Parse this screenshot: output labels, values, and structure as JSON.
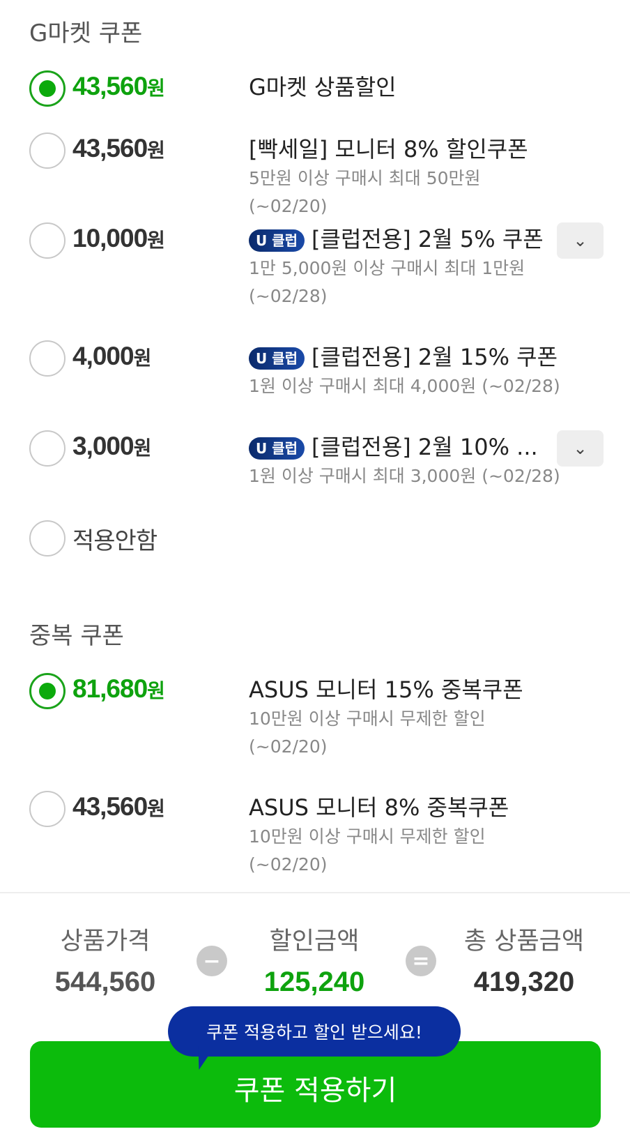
{
  "gmarket_section": {
    "title": "G마켓 쿠폰",
    "coupons": [
      {
        "amount": "43,560",
        "unit": "원",
        "title": "G마켓 상품할인",
        "sub": "",
        "selected": true
      },
      {
        "amount": "43,560",
        "unit": "원",
        "title": "[빡세일] 모니터 8% 할인쿠폰",
        "sub": "5만원 이상 구매시 최대 50만원 (~02/20)",
        "selected": false
      },
      {
        "amount": "10,000",
        "unit": "원",
        "badge": "U 클럽",
        "title": "[클럽전용] 2월 5% 쿠폰",
        "sub": "1만 5,000원 이상 구매시 최대 1만원 (~02/28)",
        "selected": false,
        "expandable": true
      },
      {
        "amount": "4,000",
        "unit": "원",
        "badge": "U 클럽",
        "title": "[클럽전용] 2월 15% 쿠폰",
        "sub": "1원 이상 구매시 최대 4,000원 (~02/28)",
        "selected": false
      },
      {
        "amount": "3,000",
        "unit": "원",
        "badge": "U 클럽",
        "title": "[클럽전용] 2월 10% ...",
        "sub": "1원 이상 구매시 최대 3,000원 (~02/28)",
        "selected": false,
        "expandable": true
      }
    ],
    "none_label": "적용안함"
  },
  "duplicate_section": {
    "title": "중복 쿠폰",
    "coupons": [
      {
        "amount": "81,680",
        "unit": "원",
        "title": "ASUS 모니터 15% 중복쿠폰",
        "sub": "10만원 이상 구매시 무제한 할인 (~02/20)",
        "selected": true
      },
      {
        "amount": "43,560",
        "unit": "원",
        "title": "ASUS 모니터 8% 중복쿠폰",
        "sub": "10만원 이상 구매시 무제한 할인 (~02/20)",
        "selected": false
      }
    ]
  },
  "summary": {
    "price_label": "상품가격",
    "price": "544,560",
    "minus": "−",
    "discount_label": "할인금액",
    "discount": "125,240",
    "equals": "=",
    "total_label": "총 상품금액",
    "total": "419,320"
  },
  "tooltip": "쿠폰 적용하고 할인 받으세요!",
  "apply_button": "쿠폰 적용하기",
  "colors": {
    "accent": "#0cbb0c",
    "selected_text": "#0ea20e",
    "tooltip": "#0b2fa0"
  }
}
